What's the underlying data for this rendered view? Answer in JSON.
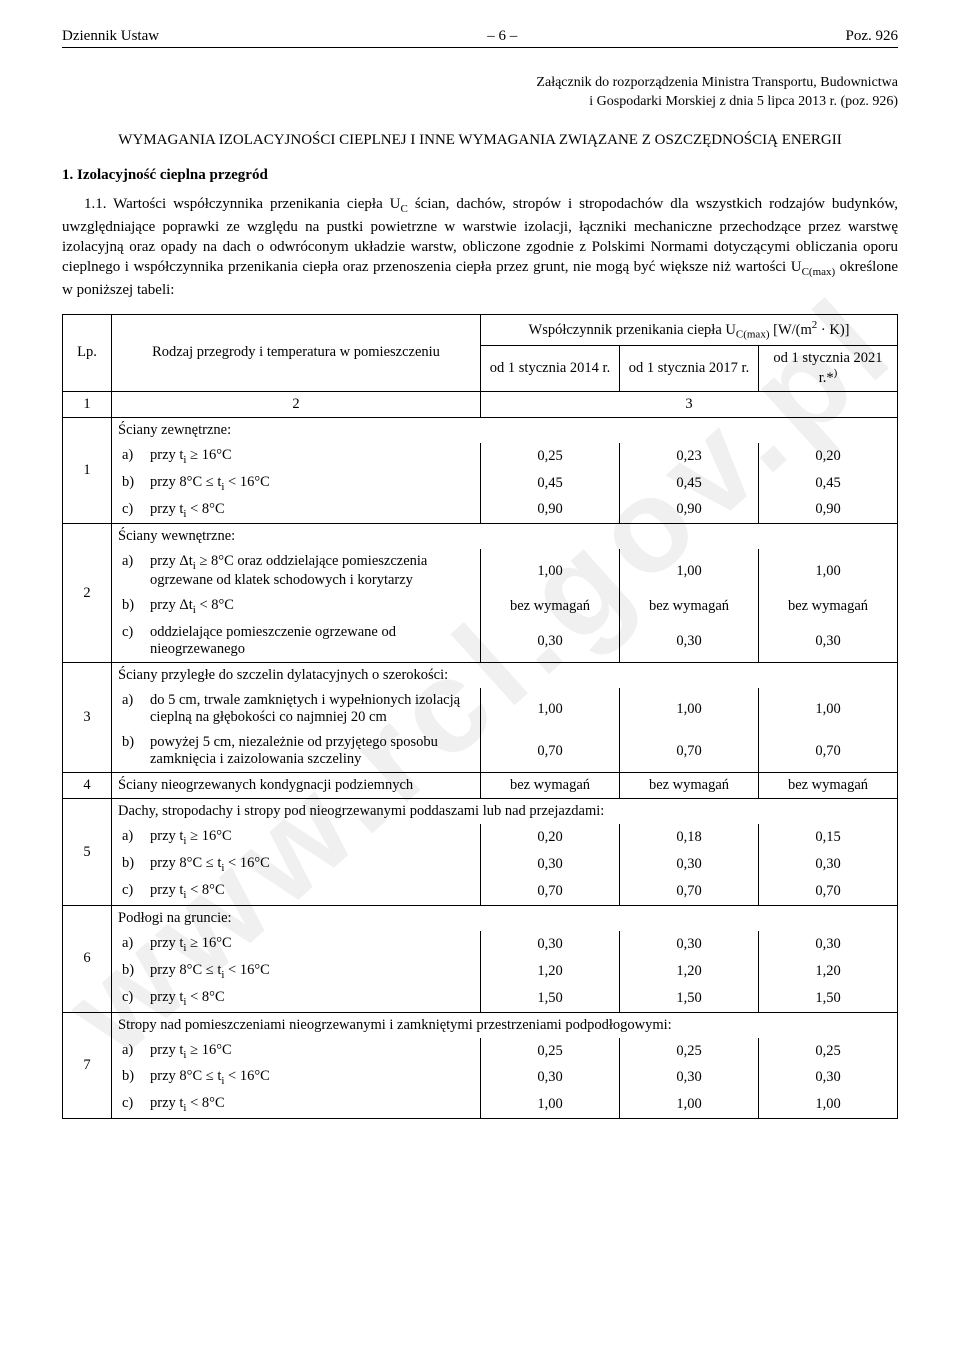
{
  "header": {
    "left": "Dziennik Ustaw",
    "center": "– 6 –",
    "right": "Poz. 926"
  },
  "watermark": "www.rcl.gov.pl",
  "attachment_line1": "Załącznik do rozporządzenia Ministra Transportu, Budownictwa",
  "attachment_line2": "i Gospodarki Morskiej z dnia 5 lipca 2013 r. (poz. 926)",
  "main_title": "WYMAGANIA IZOLACYJNOŚCI CIEPLNEJ I INNE WYMAGANIA ZWIĄZANE Z OSZCZĘDNOŚCIĄ ENERGII",
  "section_1_title": "1. Izolacyjność cieplna przegród",
  "para_1_1": "1.1. Wartości współczynnika przenikania ciepła U_C ścian, dachów, stropów i stropodachów dla wszystkich rodzajów budynków, uwzględniające poprawki ze względu na pustki powietrzne w warstwie izolacji, łączniki mechaniczne przechodzące przez warstwę izolacyjną oraz opady na dach o odwróconym układzie warstw, obliczone zgodnie z Polskimi Normami dotyczącymi obliczania oporu cieplnego i współczynnika przenikania ciepła oraz przenoszenia ciepła przez grunt, nie mogą być większe niż wartości U_C(max) określone w poniższej tabeli:",
  "table": {
    "head": {
      "lp": "Lp.",
      "desc": "Rodzaj przegrody i temperatura w pomieszczeniu",
      "coef_title": "Współczynnik przenikania ciepła U_C(max) [W/(m² · K)]",
      "col2014": "od 1 stycznia 2014 r.",
      "col2017": "od 1 stycznia 2017 r.",
      "col2021": "od 1 stycznia 2021 r.*)"
    },
    "num_row": {
      "c1": "1",
      "c2": "2",
      "c3": "3"
    },
    "groups": [
      {
        "lp": "1",
        "title": "Ściany zewnętrzne:",
        "rows": [
          {
            "l": "a)",
            "t": "przy t_i ≥ 16°C",
            "v": [
              "0,25",
              "0,23",
              "0,20"
            ]
          },
          {
            "l": "b)",
            "t": "przy 8°C ≤ t_i < 16°C",
            "v": [
              "0,45",
              "0,45",
              "0,45"
            ]
          },
          {
            "l": "c)",
            "t": "przy t_i < 8°C",
            "v": [
              "0,90",
              "0,90",
              "0,90"
            ]
          }
        ]
      },
      {
        "lp": "2",
        "title": "Ściany wewnętrzne:",
        "rows": [
          {
            "l": "a)",
            "t": "przy Δt_i ≥ 8°C oraz oddzielające pomieszczenia ogrzewane od klatek schodowych i korytarzy",
            "v": [
              "1,00",
              "1,00",
              "1,00"
            ]
          },
          {
            "l": "b)",
            "t": "przy Δt_i < 8°C",
            "v": [
              "bez wymagań",
              "bez wymagań",
              "bez wymagań"
            ]
          },
          {
            "l": "c)",
            "t": "oddzielające pomieszczenie ogrzewane od nieogrzewanego",
            "v": [
              "0,30",
              "0,30",
              "0,30"
            ]
          }
        ]
      },
      {
        "lp": "3",
        "title": "Ściany przyległe do szczelin dylatacyjnych o szerokości:",
        "rows": [
          {
            "l": "a)",
            "t": "do 5 cm, trwale zamkniętych i wypełnionych izolacją cieplną na głębokości co najmniej 20 cm",
            "v": [
              "1,00",
              "1,00",
              "1,00"
            ]
          },
          {
            "l": "b)",
            "t": "powyżej 5 cm, niezależnie od przyjętego sposobu zamknięcia i zaizolowania szczeliny",
            "v": [
              "0,70",
              "0,70",
              "0,70"
            ]
          }
        ]
      },
      {
        "lp": "4",
        "single": "Ściany nieogrzewanych kondygnacji podziemnych",
        "v": [
          "bez wymagań",
          "bez wymagań",
          "bez wymagań"
        ]
      },
      {
        "lp": "5",
        "title": "Dachy, stropodachy i stropy pod nieogrzewanymi poddaszami lub nad przejazdami:",
        "rows": [
          {
            "l": "a)",
            "t": "przy t_i ≥ 16°C",
            "v": [
              "0,20",
              "0,18",
              "0,15"
            ]
          },
          {
            "l": "b)",
            "t": "przy 8°C ≤ t_i < 16°C",
            "v": [
              "0,30",
              "0,30",
              "0,30"
            ]
          },
          {
            "l": "c)",
            "t": "przy t_i < 8°C",
            "v": [
              "0,70",
              "0,70",
              "0,70"
            ]
          }
        ]
      },
      {
        "lp": "6",
        "title": "Podłogi na gruncie:",
        "rows": [
          {
            "l": "a)",
            "t": "przy t_i ≥ 16°C",
            "v": [
              "0,30",
              "0,30",
              "0,30"
            ]
          },
          {
            "l": "b)",
            "t": "przy 8°C ≤ t_i < 16°C",
            "v": [
              "1,20",
              "1,20",
              "1,20"
            ]
          },
          {
            "l": "c)",
            "t": "przy t_i < 8°C",
            "v": [
              "1,50",
              "1,50",
              "1,50"
            ]
          }
        ]
      },
      {
        "lp": "7",
        "title": "Stropy nad pomieszczeniami nieogrzewanymi i zamkniętymi przestrzeniami podpodłogowymi:",
        "rows": [
          {
            "l": "a)",
            "t": "przy t_i ≥ 16°C",
            "v": [
              "0,25",
              "0,25",
              "0,25"
            ]
          },
          {
            "l": "b)",
            "t": "przy 8°C ≤ t_i < 16°C",
            "v": [
              "0,30",
              "0,30",
              "0,30"
            ]
          },
          {
            "l": "c)",
            "t": "przy t_i < 8°C",
            "v": [
              "1,00",
              "1,00",
              "1,00"
            ]
          }
        ]
      }
    ]
  }
}
